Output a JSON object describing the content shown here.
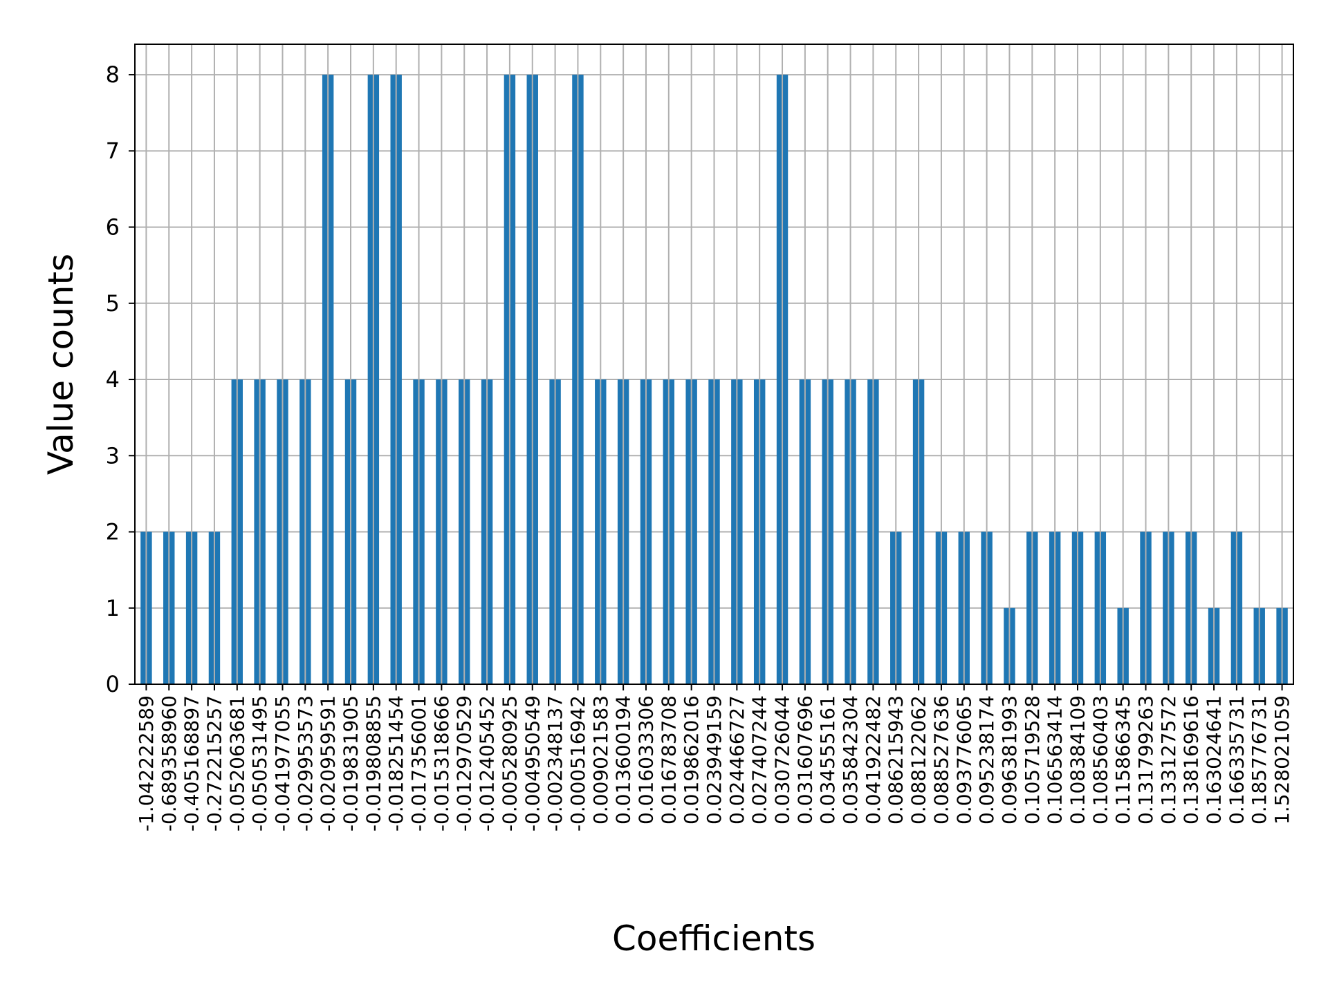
{
  "chart_data": {
    "type": "bar",
    "title": "",
    "xlabel": "Coefficients",
    "ylabel": "Value counts",
    "ylim": [
      0,
      8.4
    ],
    "yticks": [
      0,
      1,
      2,
      3,
      4,
      5,
      6,
      7,
      8
    ],
    "grid": true,
    "bar_color": "#1f77b4",
    "grid_color": "#b0b0b0",
    "categories": [
      "-1.042222589",
      "-0.689358960",
      "-0.405168897",
      "-0.272215257",
      "-0.052063681",
      "-0.050531495",
      "-0.041977055",
      "-0.029953573",
      "-0.020959591",
      "-0.019831905",
      "-0.019808855",
      "-0.018251454",
      "-0.017356001",
      "-0.015318666",
      "-0.012970529",
      "-0.012405452",
      "-0.005280925",
      "-0.004950549",
      "-0.002348137",
      "-0.000516942",
      "0.009021583",
      "0.013600194",
      "0.016033306",
      "0.016783708",
      "0.019862016",
      "0.023949159",
      "0.024466727",
      "0.027407244",
      "0.030726044",
      "0.031607696",
      "0.034555161",
      "0.035842304",
      "0.041922482",
      "0.086215943",
      "0.088122062",
      "0.088527636",
      "0.093776065",
      "0.095238174",
      "0.096381993",
      "0.105719528",
      "0.106563414",
      "0.108384109",
      "0.108560403",
      "0.115866345",
      "0.131799263",
      "0.133127572",
      "0.138169616",
      "0.163024641",
      "0.166335731",
      "0.185776731",
      "1.528021059"
    ],
    "values": [
      2,
      2,
      2,
      2,
      4,
      4,
      4,
      4,
      8,
      4,
      8,
      8,
      4,
      4,
      4,
      4,
      8,
      8,
      4,
      8,
      4,
      4,
      4,
      4,
      4,
      4,
      4,
      4,
      8,
      4,
      4,
      4,
      4,
      2,
      4,
      2,
      2,
      2,
      1,
      2,
      2,
      2,
      2,
      1,
      2,
      2,
      2,
      1,
      2,
      1,
      1
    ]
  }
}
